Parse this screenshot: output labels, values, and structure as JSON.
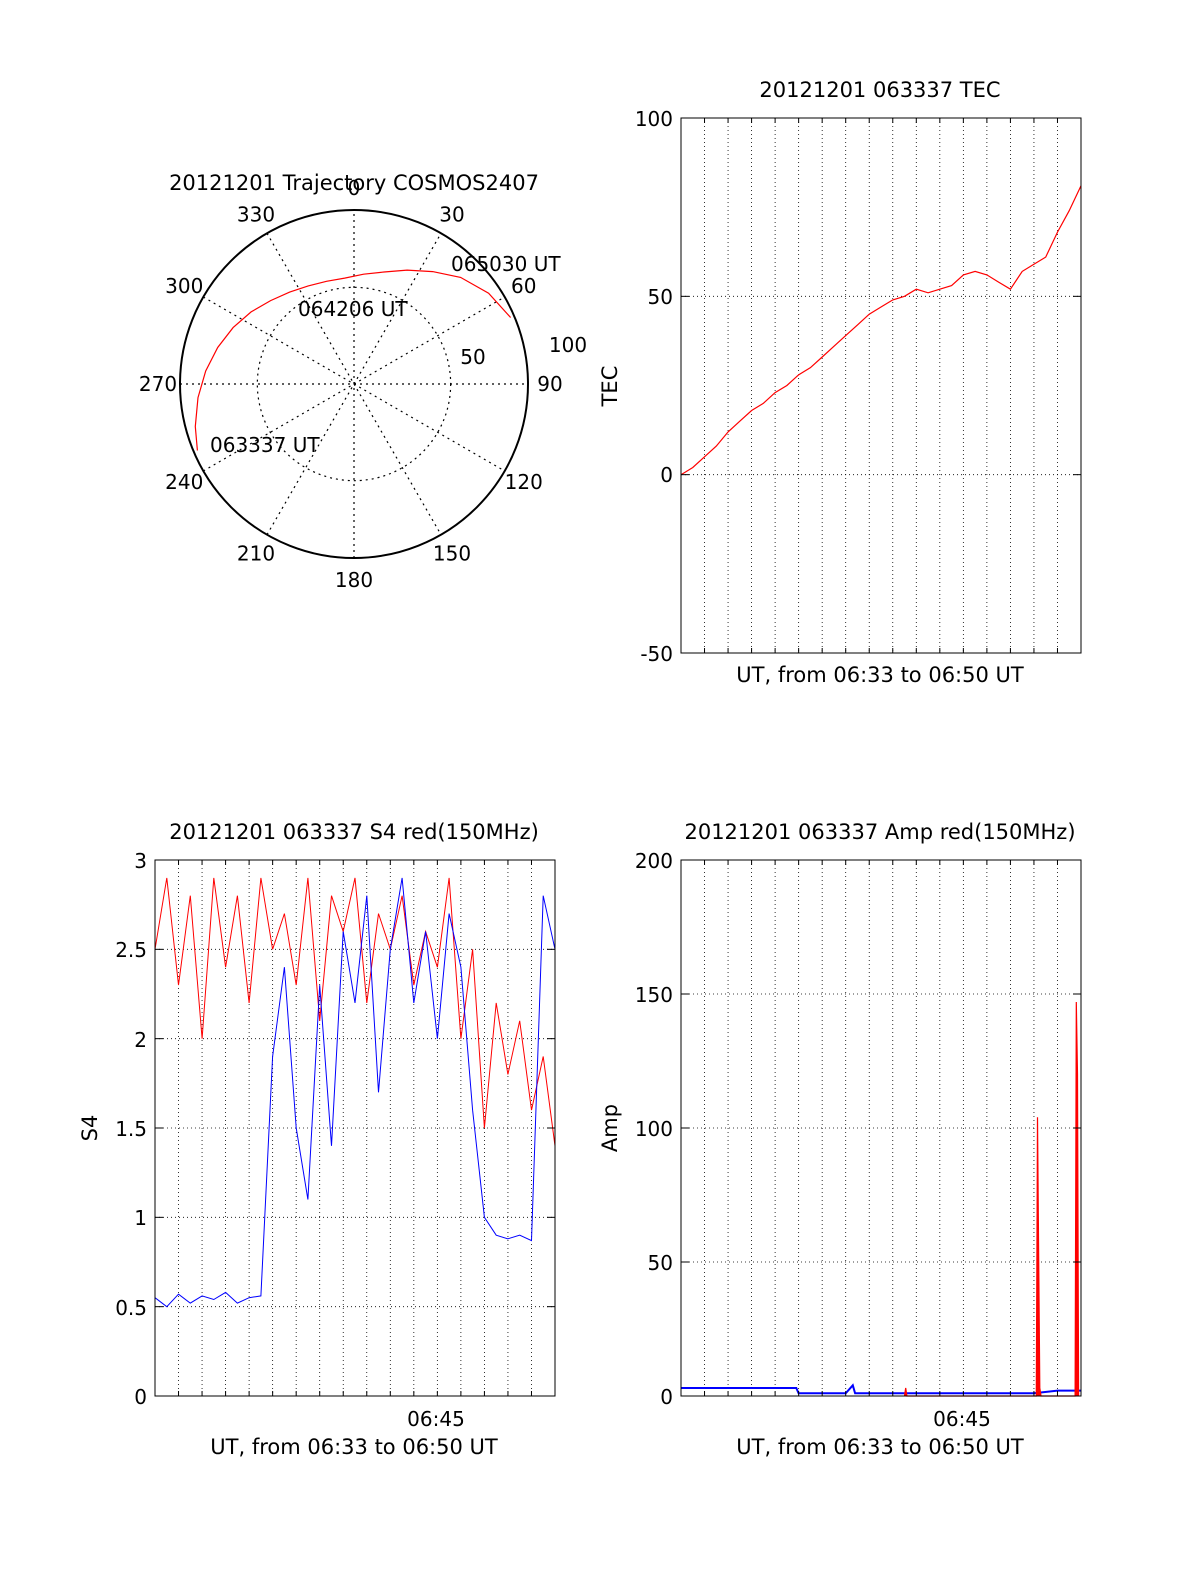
{
  "chart_data": [
    {
      "type": "polar",
      "title": "20121201 Trajectory COSMOS2407",
      "angle_labels": [
        "0",
        "30",
        "60",
        "90",
        "120",
        "150",
        "180",
        "210",
        "240",
        "270",
        "300",
        "330"
      ],
      "radial_labels": [
        "50",
        "100"
      ],
      "annotations": [
        "065030 UT",
        "064206 UT",
        "063337 UT"
      ],
      "trajectory": {
        "color": "#ff0000",
        "azimuth_deg": [
          247,
          255,
          265,
          275,
          285,
          295,
          305,
          315,
          325,
          335,
          345,
          355,
          5,
          15,
          25,
          35,
          45,
          56,
          67
        ],
        "zenith_deg": [
          88,
          85,
          81,
          77,
          73,
          69,
          65,
          61,
          58,
          56,
          55,
          55,
          57,
          60,
          65,
          71,
          78,
          84,
          88
        ]
      },
      "grid": true
    },
    {
      "type": "line",
      "title": "20121201 063337 TEC",
      "xlabel": "UT, from 06:33 to 06:50 UT",
      "ylabel": "TEC",
      "xlim": [
        0,
        17
      ],
      "ylim": [
        -50,
        100
      ],
      "yticks": [
        "100",
        "50",
        "0",
        "-50"
      ],
      "grid": true,
      "series": [
        {
          "color": "#ff0000",
          "x": [
            0,
            0.5,
            1,
            1.5,
            2,
            2.5,
            3,
            3.5,
            4,
            4.5,
            5,
            5.5,
            6,
            6.5,
            7,
            7.5,
            8,
            8.5,
            9,
            9.5,
            10,
            10.5,
            11,
            11.5,
            12,
            12.5,
            13,
            13.5,
            14,
            14.5,
            15,
            15.5,
            16,
            16.5,
            17
          ],
          "values": [
            0,
            2,
            5,
            8,
            12,
            15,
            18,
            20,
            23,
            25,
            28,
            30,
            33,
            36,
            39,
            42,
            45,
            47,
            49,
            50,
            52,
            51,
            52,
            53,
            56,
            57,
            56,
            54,
            52,
            57,
            59,
            61,
            68,
            74,
            81
          ]
        }
      ]
    },
    {
      "type": "line",
      "title": "20121201 063337 S4 red(150MHz)",
      "xlabel": "UT, from 06:33 to 06:50 UT",
      "ylabel": "S4",
      "xlim": [
        0,
        17
      ],
      "ylim": [
        0,
        3
      ],
      "yticks": [
        "3",
        "2.5",
        "2",
        "1.5",
        "1",
        "0.5",
        "0"
      ],
      "xtick_label": "06:45",
      "grid": true,
      "series": [
        {
          "color": "#ff0000",
          "x": [
            0,
            0.5,
            1,
            1.5,
            2,
            2.5,
            3,
            3.5,
            4,
            4.5,
            5,
            5.5,
            6,
            6.5,
            7,
            7.5,
            8,
            8.5,
            9,
            9.5,
            10,
            10.5,
            11,
            11.5,
            12,
            12.5,
            13,
            13.5,
            14,
            14.5,
            15,
            15.5,
            16,
            16.5,
            17
          ],
          "values": [
            2.5,
            2.9,
            2.3,
            2.8,
            2.0,
            2.9,
            2.4,
            2.8,
            2.2,
            2.9,
            2.5,
            2.7,
            2.3,
            2.9,
            2.1,
            2.8,
            2.6,
            2.9,
            2.2,
            2.7,
            2.5,
            2.8,
            2.3,
            2.6,
            2.4,
            2.9,
            2.0,
            2.5,
            1.5,
            2.2,
            1.8,
            2.1,
            1.6,
            1.9,
            1.4
          ]
        },
        {
          "color": "#0000ff",
          "x": [
            0,
            0.5,
            1,
            1.5,
            2,
            2.5,
            3,
            3.5,
            4,
            4.5,
            5,
            5.5,
            6,
            6.5,
            7,
            7.5,
            8,
            8.5,
            9,
            9.5,
            10,
            10.5,
            11,
            11.5,
            12,
            12.5,
            13,
            13.5,
            14,
            14.5,
            15,
            15.5,
            16,
            16.5,
            17
          ],
          "values": [
            0.55,
            0.5,
            0.57,
            0.52,
            0.56,
            0.54,
            0.58,
            0.52,
            0.55,
            0.56,
            1.9,
            2.4,
            1.5,
            1.1,
            2.3,
            1.4,
            2.6,
            2.2,
            2.8,
            1.7,
            2.5,
            2.9,
            2.2,
            2.6,
            2.0,
            2.7,
            2.4,
            1.6,
            1.0,
            0.9,
            0.88,
            0.9,
            0.87,
            2.8,
            2.5
          ]
        }
      ]
    },
    {
      "type": "line",
      "title": "20121201 063337 Amp red(150MHz)",
      "xlabel": "UT, from 06:33 to 06:50 UT",
      "ylabel": "Amp",
      "xlim": [
        0,
        17
      ],
      "ylim": [
        0,
        200
      ],
      "yticks": [
        "200",
        "150",
        "100",
        "50",
        "0"
      ],
      "xtick_label": "06:45",
      "grid": true,
      "series": [
        {
          "color": "#0000ff",
          "x": [
            0,
            1,
            2,
            3,
            4,
            4.9,
            5,
            6,
            7,
            7.3,
            7.4,
            8,
            9,
            10,
            11,
            12,
            13,
            14,
            15,
            16,
            17
          ],
          "values": [
            3,
            3,
            3,
            3,
            3,
            3,
            1,
            1,
            1,
            4,
            1,
            1,
            1,
            1,
            1,
            1,
            1,
            1,
            1,
            2,
            2
          ]
        },
        {
          "color": "#ff0000",
          "x": [
            9.5,
            9.55,
            9.6,
            15.1,
            15.15,
            15.2,
            15.25,
            15.3,
            16.75,
            16.8,
            16.85,
            16.9
          ],
          "values": [
            0,
            3,
            0,
            0,
            104,
            55,
            3,
            0,
            0,
            147,
            120,
            0
          ]
        }
      ]
    }
  ]
}
